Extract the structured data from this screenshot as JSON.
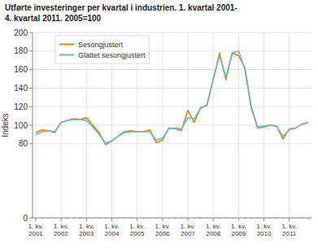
{
  "chart_data": {
    "type": "line",
    "title": "Utførte investeringer per kvartal i industrien. 1. kvartal 2001-",
    "subtitle": "4. kvartal 2011. 2005=100",
    "y_label": "Indeks",
    "categories": [
      "1. kv.\n2001",
      null,
      null,
      null,
      "1. kv.\n2002",
      null,
      null,
      null,
      "1. kv.\n2003",
      null,
      null,
      null,
      "1. kv.\n2004",
      null,
      null,
      null,
      "1. kv.\n2005",
      null,
      null,
      null,
      "1. kv.\n2006",
      null,
      null,
      null,
      "1. kv.\n2007",
      null,
      null,
      null,
      "1. kv.\n2008",
      null,
      null,
      null,
      "1. kv.\n2009",
      null,
      null,
      null,
      "1. kv.\n2010",
      null,
      null,
      null,
      "1. kv.\n2011",
      null,
      null,
      null
    ],
    "series": [
      {
        "name": "Sesongjustert",
        "color": "#e8820a",
        "values": [
          92,
          95,
          94,
          92,
          103,
          105,
          107,
          106,
          108,
          100,
          92,
          79,
          83,
          88,
          93,
          94,
          93,
          93,
          95,
          81,
          84,
          97,
          96,
          94,
          116,
          103,
          119,
          121,
          149,
          178,
          149,
          178,
          175,
          162,
          120,
          97,
          98,
          100,
          99,
          85,
          96,
          97,
          101,
          103
        ]
      },
      {
        "name": "Glattet sesongjustert",
        "color": "#6bb8d4",
        "values": [
          90,
          93,
          94,
          93,
          103,
          105,
          106,
          106,
          105,
          98,
          90,
          81,
          83,
          88,
          92,
          93,
          93,
          93,
          93,
          84,
          86,
          96,
          97,
          96,
          108,
          107,
          118,
          122,
          150,
          175,
          152,
          178,
          180,
          160,
          118,
          98,
          99,
          100,
          99,
          88,
          95,
          97,
          101,
          103
        ]
      }
    ],
    "ylim": [
      0,
      200
    ],
    "yticks": [
      0,
      80,
      100,
      120,
      140,
      160,
      180,
      200
    ],
    "grid": true,
    "legend": "upper left"
  }
}
